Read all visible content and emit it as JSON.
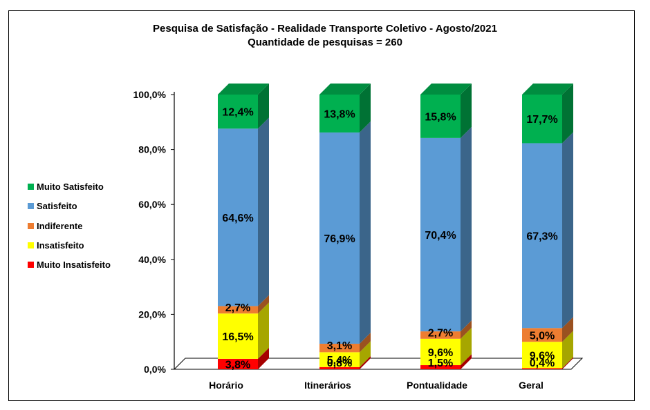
{
  "chart_data": {
    "type": "bar",
    "stacked": true,
    "three_d": true,
    "title": "Pesquisa de Satisfação - Realidade Transporte Coletivo - Agosto/2021",
    "subtitle": "Quantidade de pesquisas = 260",
    "categories": [
      "Horário",
      "Itinerários",
      "Pontualidade",
      "Geral"
    ],
    "y_ticks": [
      "0,0%",
      "20,0%",
      "40,0%",
      "60,0%",
      "80,0%",
      "100,0%"
    ],
    "ylim": [
      0,
      100
    ],
    "legend_position": "left",
    "series": [
      {
        "name": "Muito Insatisfeito",
        "color": "#ff0000",
        "values": [
          3.8,
          0.8,
          1.5,
          0.4
        ],
        "labels": [
          "3,8%",
          "0,8%",
          "1,5%",
          "0,4%"
        ]
      },
      {
        "name": "Insatisfeito",
        "color": "#ffff00",
        "values": [
          16.5,
          5.4,
          9.6,
          9.6
        ],
        "labels": [
          "16,5%",
          "5,4%",
          "9,6%",
          "9,6%"
        ]
      },
      {
        "name": "Indiferente",
        "color": "#ed7d31",
        "values": [
          2.7,
          3.1,
          2.7,
          5.0
        ],
        "labels": [
          "2,7%",
          "3,1%",
          "2,7%",
          "5,0%"
        ]
      },
      {
        "name": "Satisfeito",
        "color": "#5b9bd5",
        "values": [
          64.6,
          76.9,
          70.4,
          67.3
        ],
        "labels": [
          "64,6%",
          "76,9%",
          "70,4%",
          "67,3%"
        ]
      },
      {
        "name": "Muito Satisfeito",
        "color": "#00b050",
        "values": [
          12.4,
          13.8,
          15.8,
          17.7
        ],
        "labels": [
          "12,4%",
          "13,8%",
          "15,8%",
          "17,7%"
        ]
      }
    ]
  }
}
